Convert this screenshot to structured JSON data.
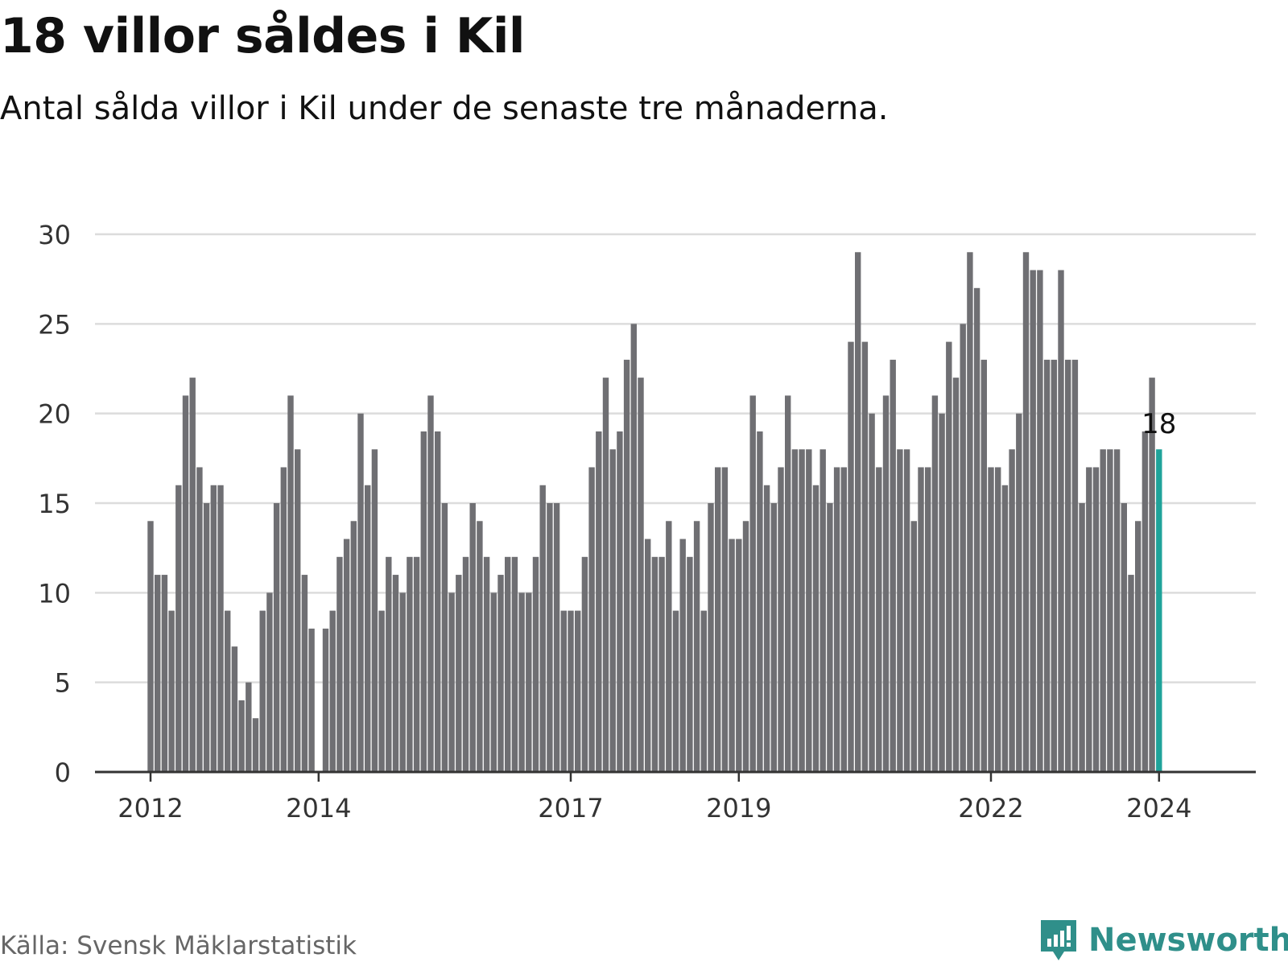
{
  "title": "18 villor såldes i Kil",
  "subtitle": "Antal sålda villor i Kil under de senaste tre månaderna.",
  "source": "Källa: Svensk Mäklarstatistik",
  "brand": {
    "name": "Newsworthy",
    "icon": "newsworthy-logo-icon",
    "color": "#2f8f8a"
  },
  "colors": {
    "bar": "#6f6f73",
    "highlight": "#1fa39a",
    "grid": "#dcdcdc",
    "axis": "#333333"
  },
  "chart_data": {
    "type": "bar",
    "title": "18 villor såldes i Kil",
    "xlabel": "",
    "ylabel": "",
    "ylim": [
      0,
      30
    ],
    "yticks": [
      0,
      5,
      10,
      15,
      20,
      25,
      30
    ],
    "grid": true,
    "start_year": 2012,
    "xticks": [
      "2012",
      "2014",
      "2017",
      "2019",
      "2022",
      "2024"
    ],
    "highlight": {
      "index": 144,
      "label": "18"
    },
    "values": [
      14,
      11,
      11,
      9,
      16,
      21,
      22,
      17,
      15,
      16,
      16,
      9,
      7,
      4,
      5,
      3,
      9,
      10,
      15,
      17,
      21,
      18,
      11,
      8,
      0,
      8,
      9,
      12,
      13,
      14,
      20,
      16,
      18,
      9,
      12,
      11,
      10,
      12,
      12,
      19,
      21,
      19,
      15,
      10,
      11,
      12,
      15,
      14,
      12,
      10,
      11,
      12,
      12,
      10,
      10,
      12,
      16,
      15,
      15,
      9,
      9,
      9,
      12,
      17,
      19,
      22,
      18,
      19,
      23,
      25,
      22,
      13,
      12,
      12,
      14,
      9,
      13,
      12,
      14,
      9,
      15,
      17,
      17,
      13,
      13,
      14,
      21,
      19,
      16,
      15,
      17,
      21,
      18,
      18,
      18,
      16,
      18,
      15,
      17,
      17,
      24,
      29,
      24,
      20,
      17,
      21,
      23,
      18,
      18,
      14,
      17,
      17,
      21,
      20,
      24,
      22,
      25,
      29,
      27,
      23,
      17,
      17,
      16,
      18,
      20,
      29,
      28,
      28,
      23,
      23,
      28,
      23,
      23,
      15,
      17,
      17,
      18,
      18,
      18,
      15,
      11,
      14,
      19,
      22,
      18
    ]
  }
}
